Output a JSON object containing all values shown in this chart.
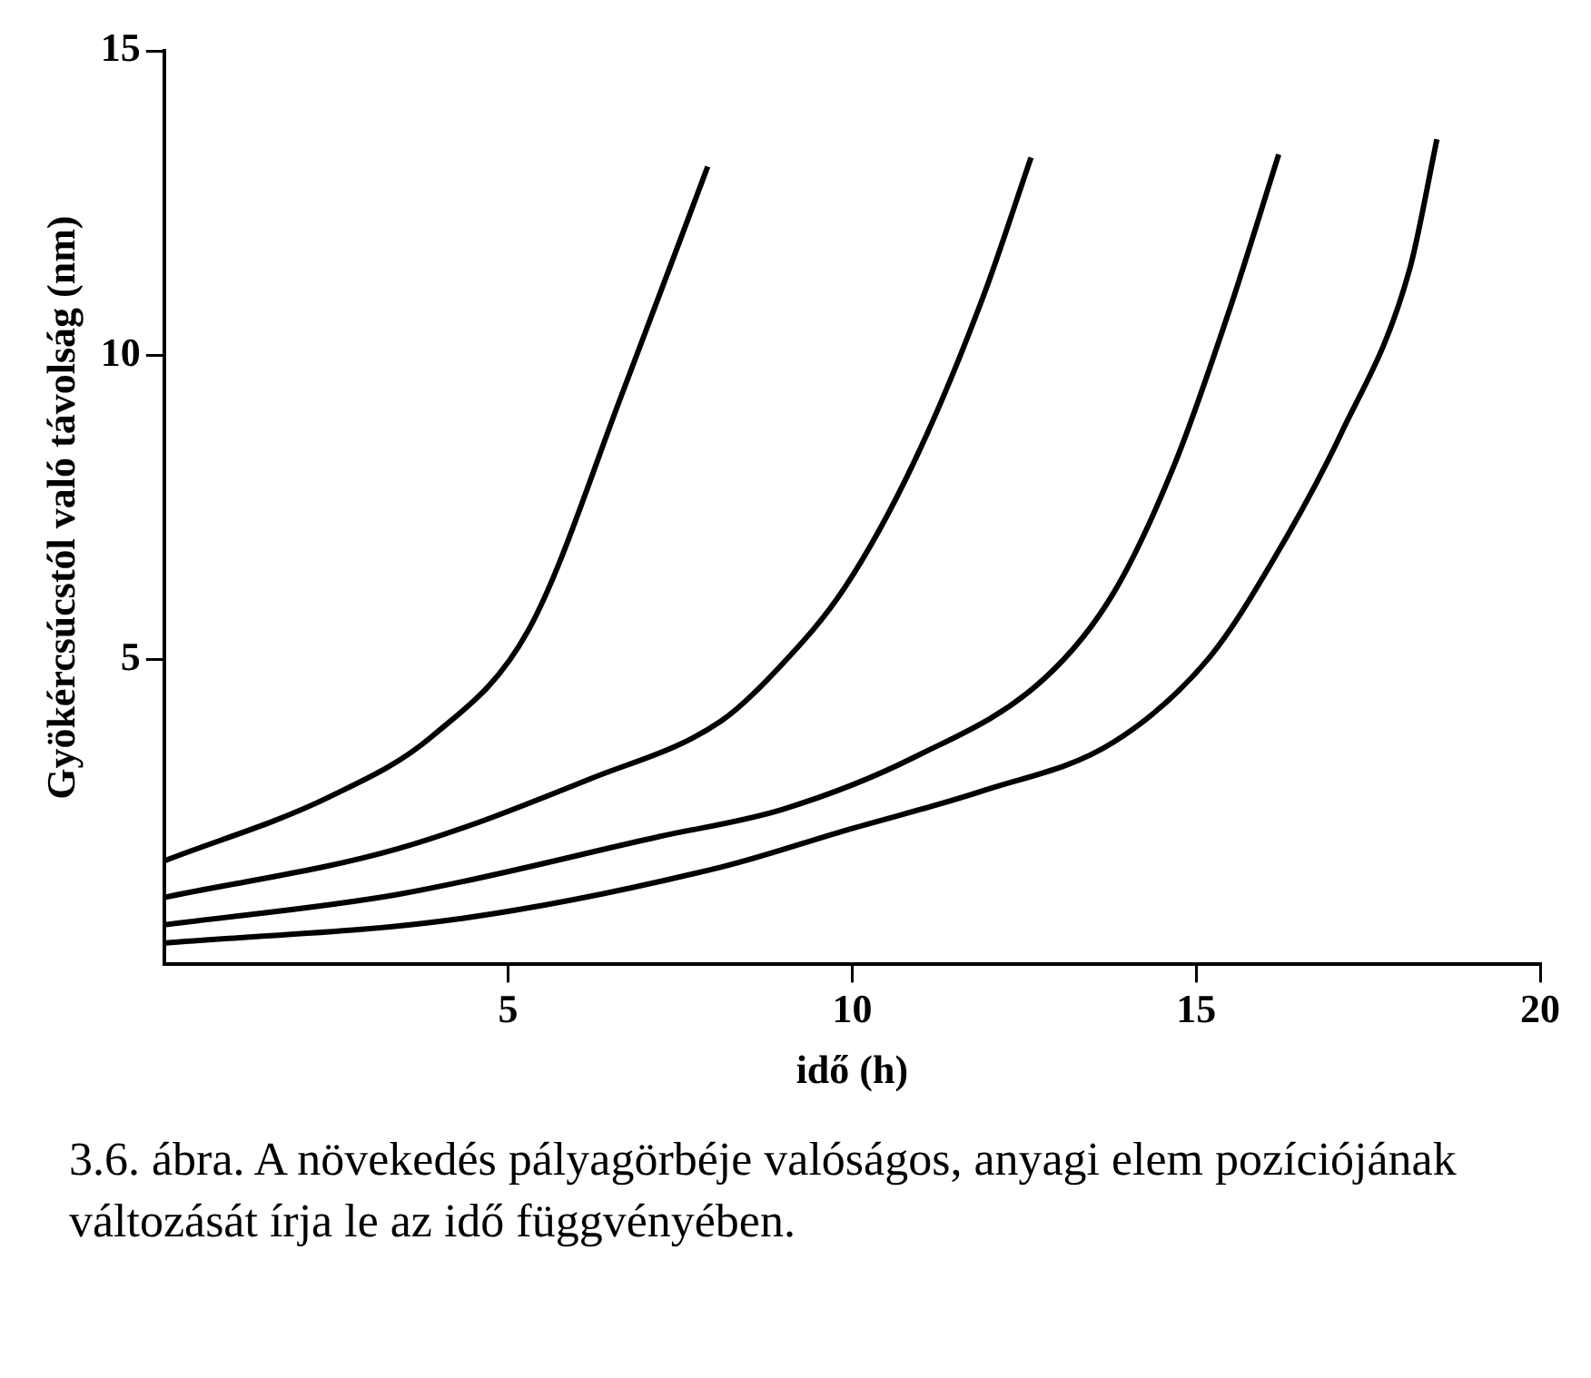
{
  "chart_data": {
    "type": "line",
    "xlabel": "idő (h)",
    "ylabel": "Gyökércsúcstól való távolság (nm)",
    "xlim": [
      0,
      20
    ],
    "ylim": [
      0,
      15
    ],
    "xticks": [
      5,
      10,
      15,
      20
    ],
    "yticks": [
      5,
      10,
      15
    ],
    "grid": false,
    "legend": false,
    "marker": "none",
    "line_style": "solid",
    "series": [
      {
        "color": "#000000",
        "x": [
          0,
          2.4,
          3.9,
          5.3,
          6.7,
          7.9
        ],
        "values": [
          1.7,
          2.75,
          3.75,
          5.5,
          9.5,
          13.1
        ]
      },
      {
        "color": "#000000",
        "x": [
          0,
          3.4,
          6.2,
          8.1,
          9.0,
          9.9,
          10.9,
          11.9,
          12.6
        ],
        "values": [
          1.1,
          1.9,
          3.05,
          4.0,
          4.95,
          6.2,
          8.25,
          10.95,
          13.25
        ]
      },
      {
        "color": "#000000",
        "x": [
          0,
          3.4,
          7.2,
          9.0,
          10.9,
          12.8,
          13.8,
          14.7,
          15.5,
          16.2
        ],
        "values": [
          0.65,
          1.15,
          2.1,
          2.55,
          3.4,
          4.7,
          6.1,
          8.25,
          10.8,
          13.3
        ]
      },
      {
        "color": "#000000",
        "x": [
          0,
          4.3,
          8.1,
          9.9,
          11.9,
          13.8,
          15.2,
          16.1,
          17.1,
          18.1,
          18.5
        ],
        "values": [
          0.35,
          0.75,
          1.6,
          2.2,
          2.85,
          3.65,
          5.05,
          6.6,
          8.7,
          11.4,
          13.55
        ]
      }
    ],
    "annotations": [
      "3.6. ábra. A növekedés pályagörbéje valóságos, anyagi elem pozíciójának változását írja le az idő függvényében."
    ]
  }
}
